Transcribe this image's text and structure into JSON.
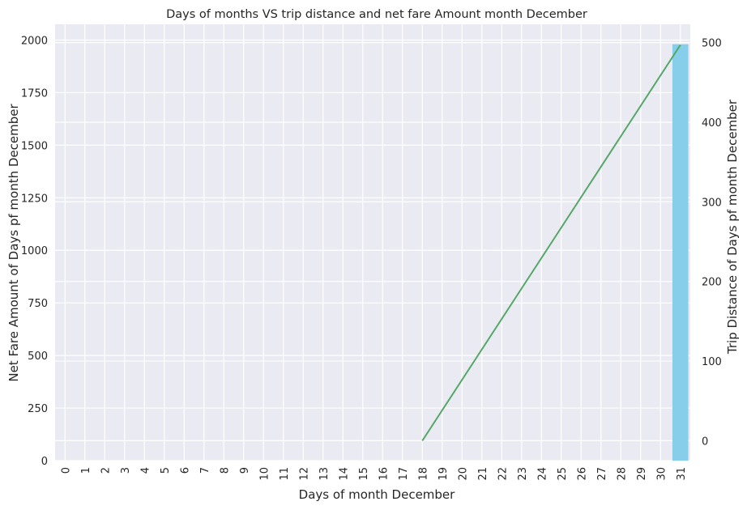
{
  "chart_data": {
    "type": "bar",
    "title": "Days of months VS trip distance and net fare Amount month December",
    "xlabel": "Days of month December",
    "ylabel_left": "Net Fare Amount of Days pf month December",
    "ylabel_right": "Trip Distance of Days pf month December",
    "categories": [
      "0",
      "1",
      "2",
      "3",
      "4",
      "5",
      "6",
      "7",
      "8",
      "9",
      "10",
      "11",
      "12",
      "13",
      "14",
      "15",
      "16",
      "17",
      "18",
      "19",
      "20",
      "21",
      "22",
      "23",
      "24",
      "25",
      "26",
      "27",
      "28",
      "29",
      "30",
      "31"
    ],
    "ylim_left": [
      0,
      2075
    ],
    "yticks_left": [
      0,
      250,
      500,
      750,
      1000,
      1250,
      1500,
      1750,
      2000
    ],
    "ylim_right": [
      -25,
      523
    ],
    "yticks_right": [
      0,
      100,
      200,
      300,
      400,
      500
    ],
    "grid": true,
    "series": [
      {
        "kind": "bar",
        "axis": "left",
        "color": "#87ceeb",
        "points": [
          {
            "x": 31,
            "y": 1980
          }
        ]
      },
      {
        "kind": "line",
        "axis": "right",
        "color": "#55a868",
        "points": [
          {
            "x": 18,
            "y": 0
          },
          {
            "x": 31,
            "y": 497
          }
        ]
      }
    ]
  }
}
